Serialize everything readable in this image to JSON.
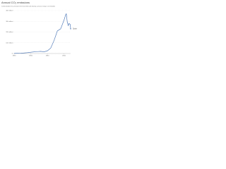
{
  "chart_data": {
    "type": "line",
    "title": "Annual CO₂ emissions",
    "subtitle": "Carbon dioxide (CO₂) emissions from fossil fuels and industry. Land-use change is not included.",
    "x": [
      1850,
      1870,
      1890,
      1900,
      1910,
      1920,
      1930,
      1940,
      1950,
      1960,
      1970,
      1980,
      1990,
      2000,
      2005,
      2007,
      2010,
      2013,
      2015,
      2019,
      2020
    ],
    "series": [
      {
        "name": "Spain",
        "color": "#3d6bb0",
        "values": [
          1,
          3,
          8,
          12,
          15,
          18,
          20,
          16,
          25,
          50,
          120,
          210,
          230,
          310,
          360,
          370,
          290,
          260,
          280,
          270,
          230
        ]
      }
    ],
    "xlim": [
      1850,
      2020
    ],
    "xticks": [
      1850,
      1900,
      1950,
      2000
    ],
    "ylim": [
      0,
      400
    ],
    "yticks": [
      {
        "value": 0,
        "label": "0 t"
      },
      {
        "value": 100,
        "label": "100 million t"
      },
      {
        "value": 200,
        "label": "200 million t"
      },
      {
        "value": 300,
        "label": "300 million t"
      },
      {
        "value": 400,
        "label": "400 million t"
      }
    ],
    "grid": true
  }
}
